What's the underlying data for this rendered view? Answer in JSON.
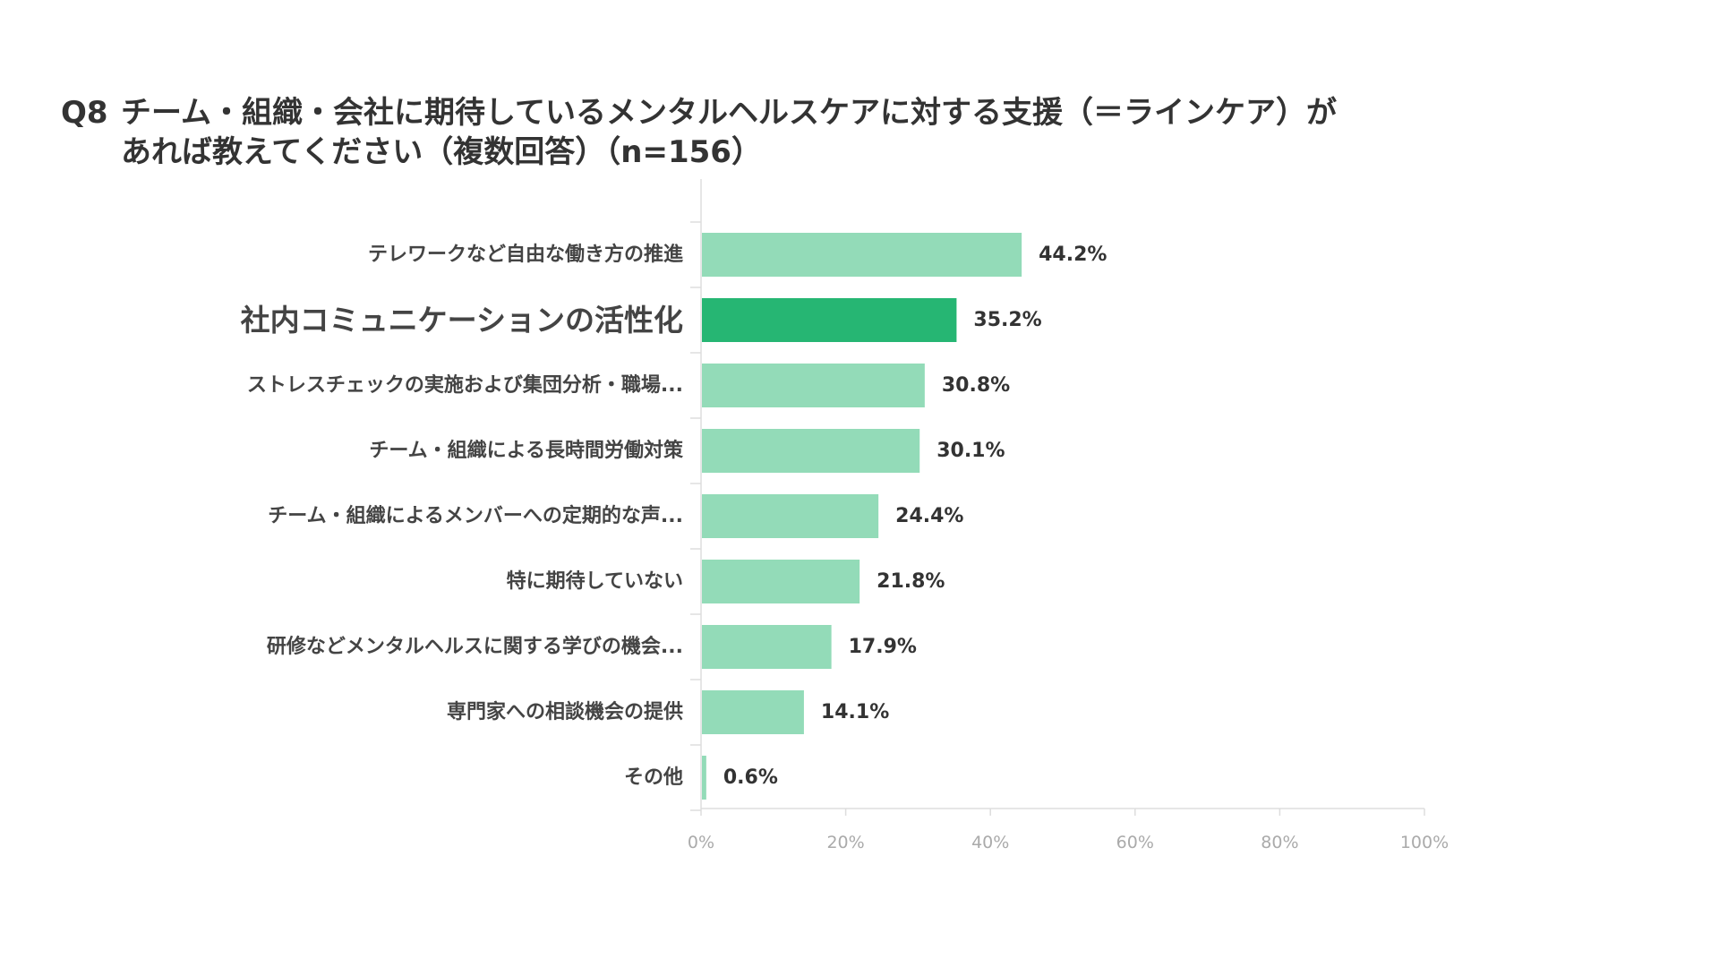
{
  "title": {
    "prefix": "Q8",
    "line1": "チーム・組織・会社に期待しているメンタルヘルスケアに対する支援（＝ラインケア）が",
    "line2": "あれば教えてください（複数回答）（n=156）"
  },
  "chart_data": {
    "type": "bar",
    "orientation": "horizontal",
    "categories": [
      "テレワークなど自由な働き方の推進",
      "社内コミュニケーションの活性化",
      "ストレスチェックの実施および集団分析・職場...",
      "チーム・組織による長時間労働対策",
      "チーム・組織によるメンバーへの定期的な声...",
      "特に期待していない",
      "研修などメンタルヘルスに関する学びの機会...",
      "専門家への相談機会の提供",
      "その他"
    ],
    "values": [
      44.2,
      35.2,
      30.8,
      30.1,
      24.4,
      21.8,
      17.9,
      14.1,
      0.6
    ],
    "value_labels": [
      "44.2%",
      "35.2%",
      "30.8%",
      "30.1%",
      "24.4%",
      "21.8%",
      "17.9%",
      "14.1%",
      "0.6%"
    ],
    "highlight_index": 1,
    "xlim": [
      0,
      100
    ],
    "x_ticks": [
      0,
      20,
      40,
      60,
      80,
      100
    ],
    "x_tick_labels": [
      "0%",
      "20%",
      "40%",
      "60%",
      "80%",
      "100%"
    ],
    "colors": {
      "bar": "#93dbb8",
      "highlight": "#26b673",
      "axis": "#dddddd"
    },
    "grid": false,
    "legend": "none"
  }
}
